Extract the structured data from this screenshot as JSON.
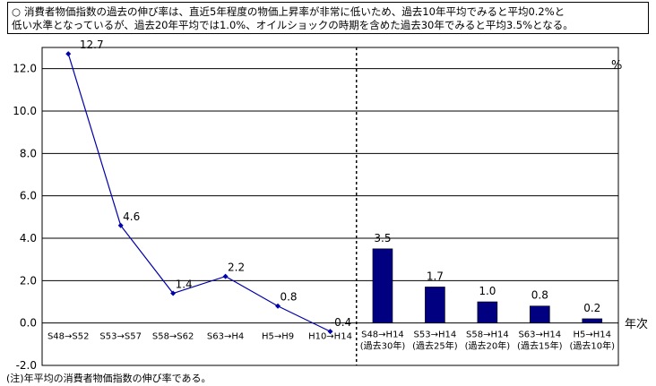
{
  "summary": {
    "mark": "○",
    "line1": "消費者物価指数の過去の伸び率は、直近5年程度の物価上昇率が非常に低いため、過去10年平均でみると平均0.2%と",
    "line2": "低い水準となっているが、過去20年平均では1.0%、オイルショックの時期を含めた過去30年でみると平均3.5%となる。"
  },
  "note": "(注)年平均の消費者物価指数の伸び率である。",
  "chart_data": {
    "type": "line+bar",
    "ylabel": "%",
    "xlabel": "年次",
    "ylim": [
      -2.0,
      13.0
    ],
    "yticks": [
      "12.0",
      "10.0",
      "8.0",
      "6.0",
      "4.0",
      "2.0",
      "0.0",
      "-2.0"
    ],
    "grid": true,
    "line_series": {
      "categories": [
        "S48→S52",
        "S53→S57",
        "S58→S62",
        "S63→H4",
        "H5→H9",
        "H10→H14"
      ],
      "values": [
        12.7,
        4.6,
        1.4,
        2.2,
        0.8,
        -0.4
      ],
      "labels": [
        "12.7",
        "4.6",
        "1.4",
        "2.2",
        "0.8",
        "-0.4"
      ],
      "color": "#0000aa"
    },
    "bar_series": {
      "categories": [
        [
          "S48→H14",
          "(過去30年)"
        ],
        [
          "S53→H14",
          "(過去25年)"
        ],
        [
          "S58→H14",
          "(過去20年)"
        ],
        [
          "S63→H14",
          "(過去15年)"
        ],
        [
          "H5→H14",
          "(過去10年)"
        ]
      ],
      "values": [
        3.5,
        1.7,
        1.0,
        0.8,
        0.2
      ],
      "labels": [
        "3.5",
        "1.7",
        "1.0",
        "0.8",
        "0.2"
      ],
      "color": "#000080"
    }
  }
}
